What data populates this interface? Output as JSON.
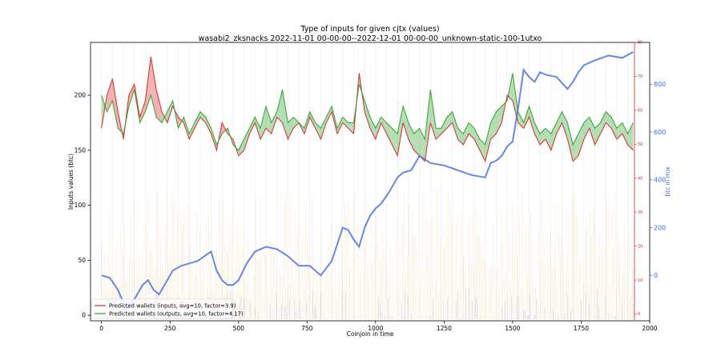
{
  "chart_data": {
    "type": "line",
    "title": "Type of inputs for given cjtx (values)",
    "subtitle": "wasabi2_zksnacks 2022-11-01 00-00-00--2022-12-01 00-00-00_unknown-static-100-1utxo",
    "xlabel": "Coinjoin in time",
    "ylabel": "Inputs values (btc)",
    "y2label": "btc in mix",
    "xlim": [
      -40,
      2000
    ],
    "ylim": [
      -5,
      248
    ],
    "y2_red_lim": [
      -2,
      80
    ],
    "y3_blue_lim": [
      -190,
      975
    ],
    "x_ticks": [
      "0",
      "250",
      "500",
      "750",
      "1000",
      "1250",
      "1500",
      "1750",
      "2000"
    ],
    "x_tick_values": [
      0,
      250,
      500,
      750,
      1000,
      1250,
      1500,
      1750,
      2000
    ],
    "y_ticks": [
      "0",
      "50",
      "100",
      "150",
      "200"
    ],
    "y_tick_values": [
      0,
      50,
      100,
      150,
      200
    ],
    "y2_red_ticks": [
      "0",
      "10",
      "20",
      "30",
      "40",
      "50",
      "60",
      "70",
      "80"
    ],
    "y2_red_tick_values": [
      0,
      10,
      20,
      30,
      40,
      50,
      60,
      70,
      80
    ],
    "y3_blue_ticks": [
      "0",
      "200",
      "400",
      "600",
      "800"
    ],
    "y3_blue_tick_values": [
      0,
      200,
      400,
      600,
      800
    ],
    "legend_position": "bottom-left",
    "series": [
      {
        "name": "Predicted wallets (inputs, avg=10, factor=3.9)",
        "color": "#d62728",
        "x": [
          0,
          20,
          40,
          60,
          80,
          100,
          120,
          140,
          160,
          180,
          200,
          220,
          240,
          260,
          280,
          300,
          320,
          340,
          360,
          380,
          400,
          420,
          440,
          460,
          480,
          500,
          520,
          540,
          560,
          580,
          600,
          620,
          640,
          660,
          680,
          700,
          720,
          740,
          760,
          780,
          800,
          820,
          840,
          860,
          880,
          900,
          920,
          940,
          960,
          980,
          1000,
          1020,
          1040,
          1060,
          1080,
          1100,
          1120,
          1140,
          1160,
          1180,
          1200,
          1220,
          1240,
          1260,
          1280,
          1300,
          1320,
          1340,
          1360,
          1380,
          1400,
          1420,
          1440,
          1460,
          1480,
          1500,
          1520,
          1540,
          1560,
          1580,
          1600,
          1620,
          1640,
          1660,
          1680,
          1700,
          1720,
          1740,
          1760,
          1780,
          1800,
          1820,
          1840,
          1860,
          1880,
          1900,
          1920,
          1940
        ],
        "values": [
          170,
          200,
          215,
          185,
          160,
          200,
          210,
          180,
          195,
          235,
          205,
          185,
          175,
          190,
          180,
          175,
          160,
          170,
          180,
          175,
          165,
          150,
          175,
          165,
          160,
          145,
          150,
          165,
          175,
          160,
          170,
          165,
          180,
          175,
          160,
          170,
          175,
          165,
          180,
          170,
          160,
          175,
          185,
          165,
          175,
          170,
          165,
          220,
          185,
          170,
          160,
          175,
          165,
          155,
          145,
          175,
          160,
          150,
          145,
          140,
          175,
          160,
          165,
          170,
          175,
          160,
          155,
          165,
          160,
          150,
          140,
          160,
          165,
          175,
          200,
          195,
          175,
          170,
          180,
          165,
          155,
          160,
          150,
          165,
          175,
          160,
          140,
          145,
          160,
          170,
          155,
          165,
          175,
          170,
          160,
          165,
          155,
          150
        ]
      },
      {
        "name": "Predicted wallets (outputs, avg=10, factor=4.17)",
        "color": "#2ca02c",
        "x": [
          0,
          20,
          40,
          60,
          80,
          100,
          120,
          140,
          160,
          180,
          200,
          220,
          240,
          260,
          280,
          300,
          320,
          340,
          360,
          380,
          400,
          420,
          440,
          460,
          480,
          500,
          520,
          540,
          560,
          580,
          600,
          620,
          640,
          660,
          680,
          700,
          720,
          740,
          760,
          780,
          800,
          820,
          840,
          860,
          880,
          900,
          920,
          940,
          960,
          980,
          1000,
          1020,
          1040,
          1060,
          1080,
          1100,
          1120,
          1140,
          1160,
          1180,
          1200,
          1220,
          1240,
          1260,
          1280,
          1300,
          1320,
          1340,
          1360,
          1380,
          1400,
          1420,
          1440,
          1460,
          1480,
          1500,
          1520,
          1540,
          1560,
          1580,
          1600,
          1620,
          1640,
          1660,
          1680,
          1700,
          1720,
          1740,
          1760,
          1780,
          1800,
          1820,
          1840,
          1860,
          1880,
          1900,
          1920,
          1940
        ],
        "values": [
          200,
          185,
          195,
          170,
          165,
          190,
          205,
          175,
          185,
          200,
          180,
          175,
          185,
          195,
          170,
          180,
          165,
          175,
          185,
          180,
          170,
          155,
          165,
          170,
          155,
          150,
          160,
          170,
          180,
          170,
          190,
          175,
          185,
          205,
          175,
          180,
          175,
          170,
          185,
          175,
          170,
          180,
          190,
          170,
          180,
          175,
          175,
          210,
          195,
          180,
          170,
          180,
          175,
          170,
          165,
          190,
          175,
          165,
          170,
          160,
          205,
          170,
          170,
          180,
          185,
          170,
          165,
          175,
          170,
          160,
          155,
          175,
          185,
          190,
          195,
          220,
          185,
          175,
          190,
          175,
          165,
          170,
          165,
          175,
          185,
          175,
          155,
          165,
          175,
          180,
          170,
          175,
          185,
          180,
          170,
          175,
          165,
          175
        ]
      },
      {
        "name": "",
        "axis": "btc in mix",
        "color": "#4169e1",
        "x": [
          0,
          30,
          60,
          90,
          110,
          130,
          150,
          170,
          190,
          210,
          230,
          260,
          290,
          320,
          350,
          400,
          420,
          440,
          460,
          480,
          500,
          530,
          560,
          600,
          640,
          680,
          720,
          760,
          800,
          840,
          880,
          900,
          920,
          940,
          960,
          980,
          1000,
          1020,
          1050,
          1080,
          1100,
          1130,
          1160,
          1200,
          1250,
          1300,
          1350,
          1400,
          1420,
          1440,
          1460,
          1480,
          1500,
          1520,
          1540,
          1560,
          1580,
          1600,
          1620,
          1660,
          1700,
          1720,
          1740,
          1760,
          1800,
          1850,
          1900,
          1940
        ],
        "values": [
          0,
          -10,
          -60,
          -140,
          -120,
          -80,
          -40,
          -20,
          -60,
          -80,
          -40,
          20,
          40,
          50,
          60,
          100,
          20,
          -20,
          -40,
          -40,
          -20,
          50,
          100,
          120,
          110,
          80,
          40,
          40,
          0,
          60,
          200,
          190,
          150,
          120,
          200,
          250,
          280,
          300,
          350,
          410,
          430,
          440,
          500,
          470,
          460,
          440,
          420,
          410,
          470,
          480,
          500,
          540,
          560,
          700,
          860,
          830,
          810,
          850,
          840,
          830,
          780,
          810,
          850,
          880,
          900,
          920,
          910,
          935
        ]
      }
    ]
  }
}
